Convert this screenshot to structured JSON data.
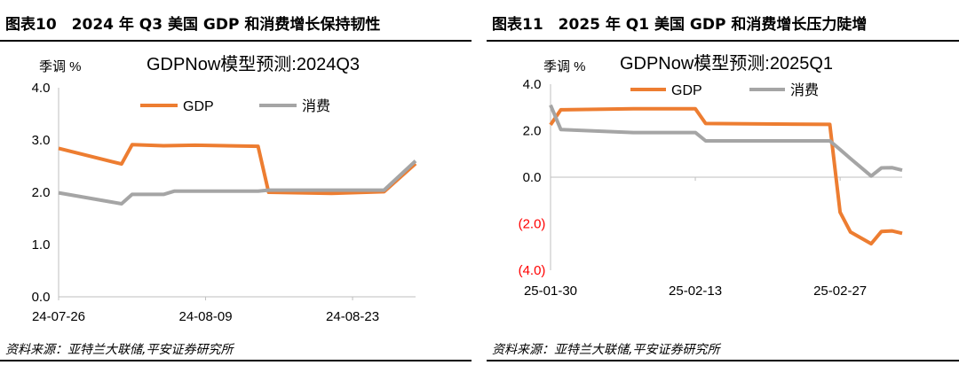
{
  "panels": [
    {
      "title": "图表10　2024 年 Q3 美国 GDP 和消费增长保持韧性",
      "source": "资料来源：亚特兰大联储,平安证券研究所",
      "chart_data": {
        "type": "line",
        "title": "GDPNow模型预测:2024Q3",
        "ylabel": "季调 %",
        "ylim": [
          0,
          4
        ],
        "yticks": [
          0,
          1,
          2,
          3,
          4
        ],
        "ytick_labels": [
          "0.0",
          "1.0",
          "2.0",
          "3.0",
          "4.0"
        ],
        "xlim": [
          0,
          34
        ],
        "xticks": [
          0,
          14,
          28
        ],
        "xtick_labels": [
          "24-07-26",
          "24-08-09",
          "24-08-23"
        ],
        "legend": "top-left",
        "grid": false,
        "series": [
          {
            "name": "GDP",
            "color": "#ED7D31",
            "x": [
              0,
              6,
              7,
              10,
              13,
              19,
              20,
              26,
              31,
              34
            ],
            "y": [
              2.84,
              2.54,
              2.91,
              2.89,
              2.9,
              2.88,
              2.0,
              1.98,
              2.01,
              2.55
            ]
          },
          {
            "name": "消费",
            "color": "#A5A5A5",
            "x": [
              0,
              6,
              7,
              10,
              11,
              19,
              20,
              31,
              34
            ],
            "y": [
              1.99,
              1.78,
              1.96,
              1.96,
              2.02,
              2.02,
              2.04,
              2.04,
              2.6
            ]
          }
        ]
      }
    },
    {
      "title": "图表11　2025 年 Q1 美国 GDP 和消费增长压力陡增",
      "source": "资料来源：亚特兰大联储,平安证券研究所",
      "chart_data": {
        "type": "line",
        "title": "GDPNow模型预测:2025Q1",
        "ylabel": "季调 %",
        "ylim": [
          -4,
          4
        ],
        "yticks": [
          -4,
          -2,
          0,
          2,
          4
        ],
        "ytick_labels": [
          "(4.0)",
          "(2.0)",
          "0.0",
          "2.0",
          "4.0"
        ],
        "negative_tick_color": "#FF0000",
        "xlim": [
          0,
          34
        ],
        "xticks": [
          0,
          14,
          28
        ],
        "xtick_labels": [
          "25-01-30",
          "25-02-13",
          "25-02-27"
        ],
        "legend": "top-center",
        "grid": false,
        "series": [
          {
            "name": "GDP",
            "color": "#ED7D31",
            "x": [
              0,
              1,
              8,
              14,
              15,
              27,
              28,
              29,
              31,
              32,
              33,
              34
            ],
            "y": [
              2.25,
              2.9,
              2.94,
              2.94,
              2.31,
              2.27,
              -1.51,
              -2.36,
              -2.86,
              -2.33,
              -2.31,
              -2.41
            ]
          },
          {
            "name": "消费",
            "color": "#A5A5A5",
            "x": [
              0,
              1,
              8,
              14,
              15,
              27,
              28,
              29,
              31,
              32,
              33,
              34
            ],
            "y": [
              3.1,
              2.05,
              1.92,
              1.92,
              1.56,
              1.56,
              1.19,
              0.8,
              0.05,
              0.4,
              0.41,
              0.3
            ]
          }
        ]
      }
    }
  ]
}
